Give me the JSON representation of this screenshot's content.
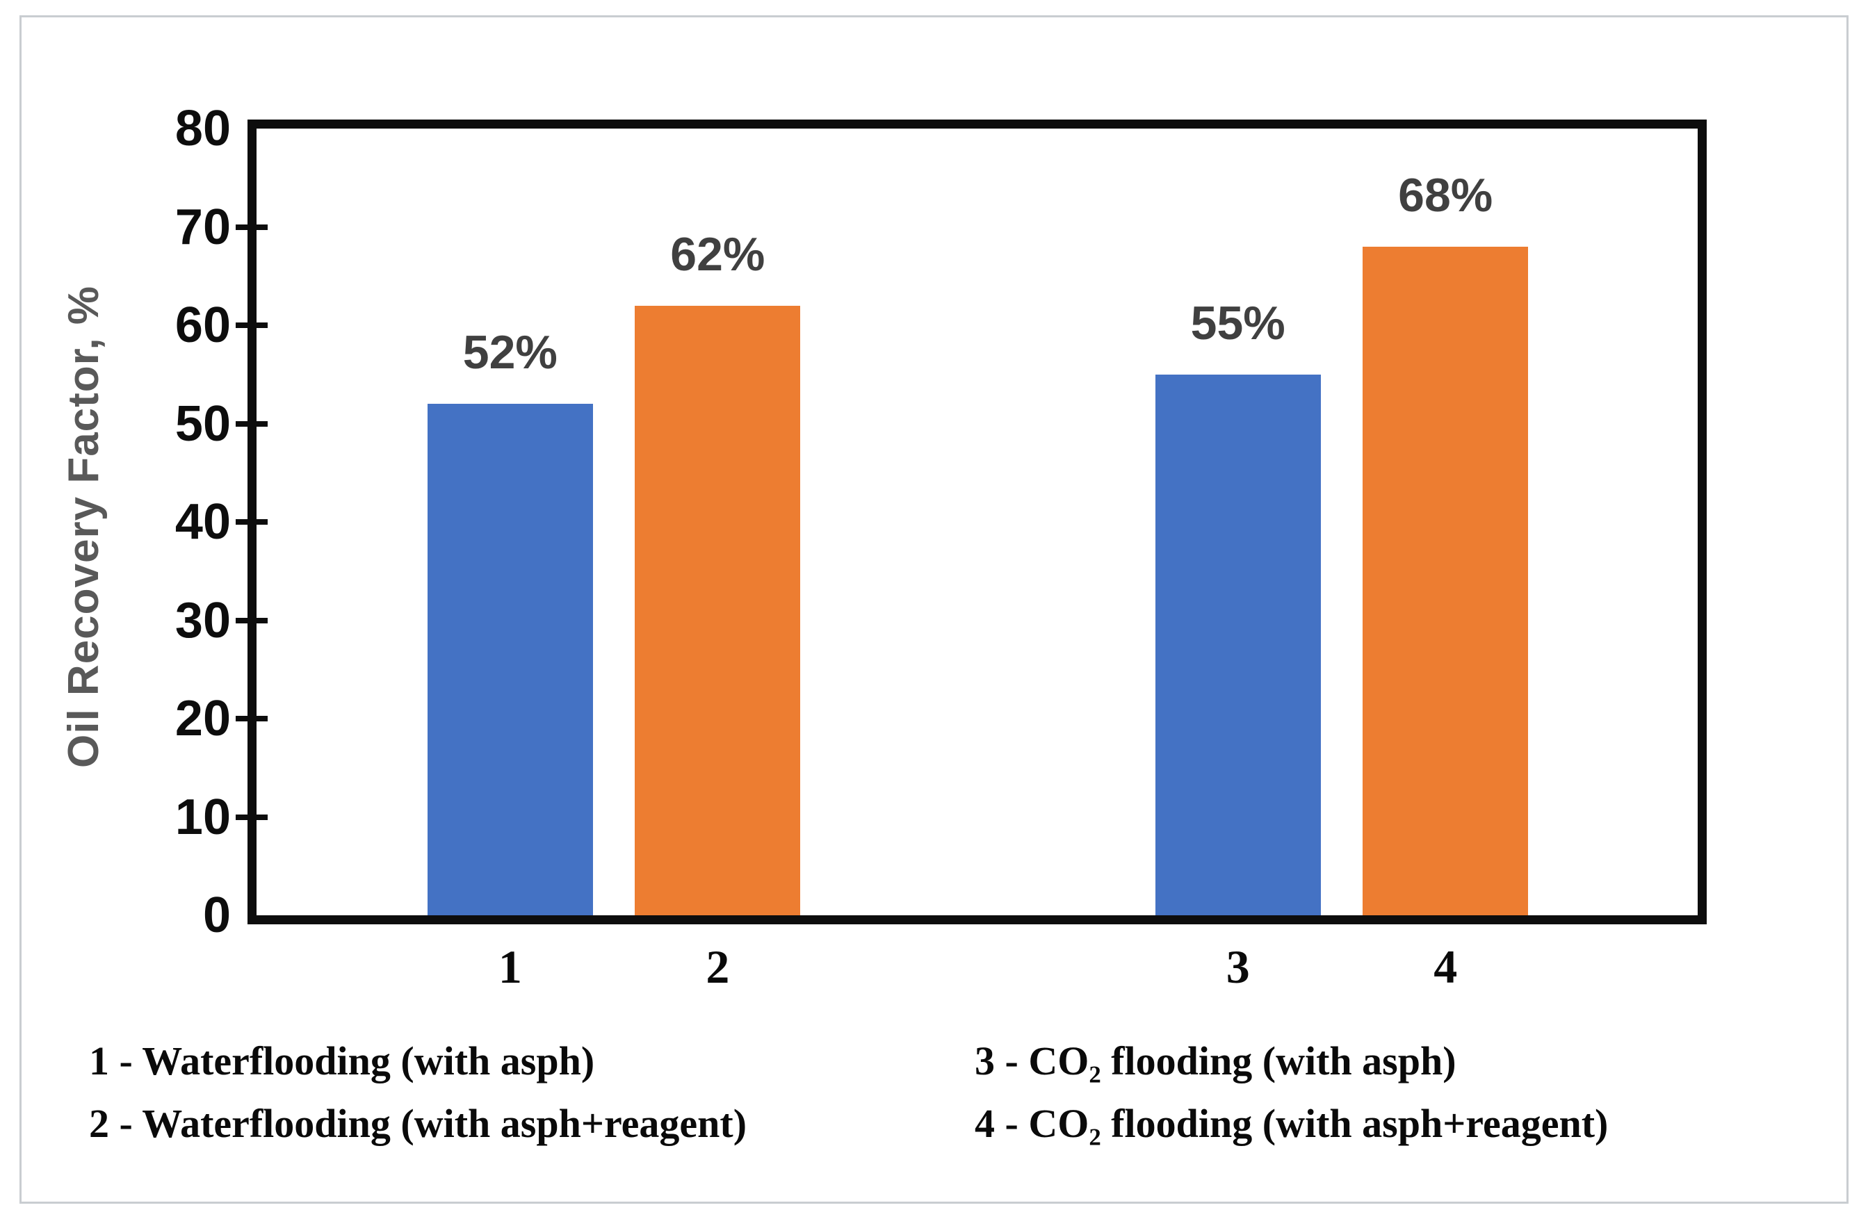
{
  "chart_data": {
    "type": "bar",
    "title": "",
    "categories": [
      "1",
      "2",
      "3",
      "4"
    ],
    "values": [
      52,
      62,
      55,
      68
    ],
    "value_labels": [
      "52%",
      "62%",
      "55%",
      "68%"
    ],
    "bar_colors": [
      "#4472C4",
      "#ED7D31",
      "#4472C4",
      "#ED7D31"
    ],
    "groups": [
      [
        "1",
        "2"
      ],
      [
        "3",
        "4"
      ]
    ],
    "xlabel": "",
    "ylabel": "Oil Recovery Factor, %",
    "ylim": [
      0,
      80
    ],
    "yticks": [
      0,
      10,
      20,
      30,
      40,
      50,
      60,
      70,
      80
    ],
    "grid": false,
    "legend_position": "below-chart"
  },
  "legend": {
    "col1": [
      "1 - Waterflooding (with asph)",
      "2 - Waterflooding (with asph+reagent)"
    ],
    "col2": [
      "3 - CO₂ flooding (with asph)",
      "4 - CO₂ flooding (with asph+reagent)"
    ]
  },
  "colors": {
    "bar_blue": "#4472C4",
    "bar_orange": "#ED7D31",
    "axis": "#0d0d0d",
    "tick_label": "#0d0d0d",
    "value_label": "#404040",
    "axis_title": "#595959",
    "page_border": "#c9cdd1",
    "background": "#ffffff"
  }
}
